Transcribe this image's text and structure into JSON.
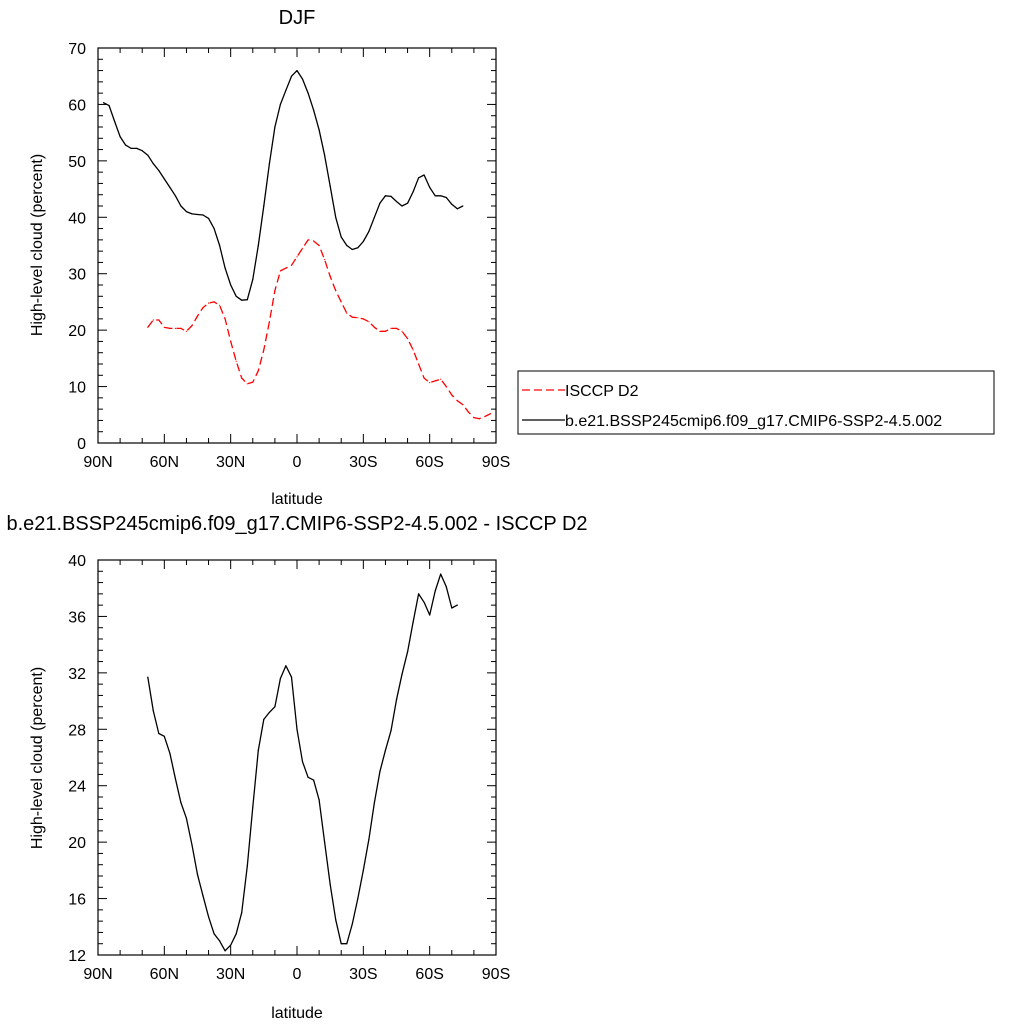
{
  "chart_data": [
    {
      "type": "line",
      "title": "DJF",
      "xlabel": "latitude",
      "ylabel": "High-level cloud (percent)",
      "xlim": [
        90,
        -90
      ],
      "ylim": [
        0,
        70
      ],
      "xticks": [
        {
          "value": 90,
          "label": "90N"
        },
        {
          "value": 60,
          "label": "60N"
        },
        {
          "value": 30,
          "label": "30N"
        },
        {
          "value": 0,
          "label": "0"
        },
        {
          "value": -30,
          "label": "30S"
        },
        {
          "value": -60,
          "label": "60S"
        },
        {
          "value": -90,
          "label": "90S"
        }
      ],
      "yticks": [
        0,
        10,
        20,
        30,
        40,
        50,
        60,
        70
      ],
      "legend_position": "right",
      "series": [
        {
          "name": "ISCCP D2",
          "style": "dashed",
          "color": "#ff0000",
          "points": [
            [
              67.5,
              20.5
            ],
            [
              65,
              21.8
            ],
            [
              62.5,
              21.8
            ],
            [
              60,
              20.5
            ],
            [
              57.5,
              20.3
            ],
            [
              55,
              20.3
            ],
            [
              52.5,
              20.3
            ],
            [
              50,
              19.8
            ],
            [
              47.5,
              20.8
            ],
            [
              45,
              22.5
            ],
            [
              42.5,
              24.0
            ],
            [
              40,
              24.8
            ],
            [
              37.5,
              25.0
            ],
            [
              35,
              24.4
            ],
            [
              32.5,
              22.0
            ],
            [
              30,
              18.0
            ],
            [
              27.5,
              14.5
            ],
            [
              25,
              11.5
            ],
            [
              22.5,
              10.5
            ],
            [
              20,
              10.8
            ],
            [
              17.5,
              12.8
            ],
            [
              15,
              16.5
            ],
            [
              12.5,
              21.5
            ],
            [
              10,
              27.0
            ],
            [
              7.5,
              30.5
            ],
            [
              5,
              31.0
            ],
            [
              2.5,
              31.5
            ],
            [
              0,
              33.0
            ],
            [
              -2.5,
              34.5
            ],
            [
              -5,
              36.0
            ],
            [
              -7.5,
              35.8
            ],
            [
              -10,
              35.0
            ],
            [
              -12.5,
              32.5
            ],
            [
              -15,
              29.5
            ],
            [
              -17.5,
              27.0
            ],
            [
              -20,
              25.0
            ],
            [
              -22.5,
              23.0
            ],
            [
              -25,
              22.3
            ],
            [
              -27.5,
              22.2
            ],
            [
              -30,
              22.0
            ],
            [
              -32.5,
              21.5
            ],
            [
              -35,
              20.5
            ],
            [
              -37.5,
              19.8
            ],
            [
              -40,
              19.8
            ],
            [
              -42.5,
              20.3
            ],
            [
              -45,
              20.3
            ],
            [
              -47.5,
              19.8
            ],
            [
              -50,
              18.5
            ],
            [
              -52.5,
              16.5
            ],
            [
              -55,
              14.0
            ],
            [
              -57.5,
              11.5
            ],
            [
              -60,
              10.7
            ],
            [
              -62.5,
              11.0
            ],
            [
              -65,
              11.3
            ],
            [
              -67.5,
              10.0
            ],
            [
              -70,
              8.5
            ],
            [
              -72.5,
              7.5
            ],
            [
              -75,
              6.8
            ],
            [
              -77.5,
              5.5
            ],
            [
              -80,
              4.5
            ],
            [
              -82.5,
              4.3
            ],
            [
              -85,
              4.7
            ],
            [
              -87.5,
              5.2
            ]
          ]
        },
        {
          "name": "b.e21.BSSP245cmip6.f09_g17.CMIP6-SSP2-4.5.002",
          "style": "solid",
          "color": "#000000",
          "points": [
            [
              87.5,
              60.3
            ],
            [
              85,
              59.8
            ],
            [
              82.5,
              57.0
            ],
            [
              80,
              54.3
            ],
            [
              77.5,
              52.8
            ],
            [
              75,
              52.2
            ],
            [
              72.5,
              52.2
            ],
            [
              70,
              51.8
            ],
            [
              67.5,
              51.0
            ],
            [
              65,
              49.5
            ],
            [
              62.5,
              48.3
            ],
            [
              60,
              46.8
            ],
            [
              57.5,
              45.3
            ],
            [
              55,
              43.8
            ],
            [
              52.5,
              42.0
            ],
            [
              50,
              41.0
            ],
            [
              47.5,
              40.6
            ],
            [
              45,
              40.5
            ],
            [
              42.5,
              40.4
            ],
            [
              40,
              39.8
            ],
            [
              37.5,
              38.0
            ],
            [
              35,
              35.0
            ],
            [
              32.5,
              31.0
            ],
            [
              30,
              28.0
            ],
            [
              27.5,
              26.0
            ],
            [
              25,
              25.3
            ],
            [
              22.5,
              25.4
            ],
            [
              20,
              29.0
            ],
            [
              17.5,
              35.0
            ],
            [
              15,
              42.0
            ],
            [
              12.5,
              49.5
            ],
            [
              10,
              56.0
            ],
            [
              7.5,
              60.0
            ],
            [
              5,
              62.5
            ],
            [
              2.5,
              65.0
            ],
            [
              0,
              66.0
            ],
            [
              -2.5,
              64.5
            ],
            [
              -5,
              62.0
            ],
            [
              -7.5,
              59.0
            ],
            [
              -10,
              55.5
            ],
            [
              -12.5,
              51.0
            ],
            [
              -15,
              45.5
            ],
            [
              -17.5,
              40.0
            ],
            [
              -20,
              36.5
            ],
            [
              -22.5,
              35.0
            ],
            [
              -25,
              34.3
            ],
            [
              -27.5,
              34.6
            ],
            [
              -30,
              35.7
            ],
            [
              -32.5,
              37.5
            ],
            [
              -35,
              40.0
            ],
            [
              -37.5,
              42.5
            ],
            [
              -40,
              43.8
            ],
            [
              -42.5,
              43.7
            ],
            [
              -45,
              42.8
            ],
            [
              -47.5,
              42.0
            ],
            [
              -50,
              42.5
            ],
            [
              -52.5,
              44.5
            ],
            [
              -55,
              47.0
            ],
            [
              -57.5,
              47.5
            ],
            [
              -60,
              45.3
            ],
            [
              -62.5,
              43.8
            ],
            [
              -65,
              43.8
            ],
            [
              -67.5,
              43.5
            ],
            [
              -70,
              42.3
            ],
            [
              -72.5,
              41.5
            ],
            [
              -75,
              42.0
            ]
          ]
        }
      ]
    },
    {
      "type": "line",
      "title": "b.e21.BSSP245cmip6.f09_g17.CMIP6-SSP2-4.5.002 - ISCCP D2",
      "xlabel": "latitude",
      "ylabel": "High-level cloud (percent)",
      "xlim": [
        90,
        -90
      ],
      "ylim": [
        12,
        40
      ],
      "xticks": [
        {
          "value": 90,
          "label": "90N"
        },
        {
          "value": 60,
          "label": "60N"
        },
        {
          "value": 30,
          "label": "30N"
        },
        {
          "value": 0,
          "label": "0"
        },
        {
          "value": -30,
          "label": "30S"
        },
        {
          "value": -60,
          "label": "60S"
        },
        {
          "value": -90,
          "label": "90S"
        }
      ],
      "yticks": [
        12,
        16,
        20,
        24,
        28,
        32,
        36,
        40
      ],
      "series": [
        {
          "style": "solid",
          "color": "#000000",
          "points": [
            [
              67.5,
              31.7
            ],
            [
              65,
              29.3
            ],
            [
              62.5,
              27.7
            ],
            [
              60,
              27.5
            ],
            [
              57.5,
              26.3
            ],
            [
              55,
              24.5
            ],
            [
              52.5,
              22.8
            ],
            [
              50,
              21.7
            ],
            [
              47.5,
              19.8
            ],
            [
              45,
              17.7
            ],
            [
              42.5,
              16.2
            ],
            [
              40,
              14.7
            ],
            [
              37.5,
              13.5
            ],
            [
              35,
              13.0
            ],
            [
              32.5,
              12.3
            ],
            [
              30,
              12.7
            ],
            [
              27.5,
              13.5
            ],
            [
              25,
              15.0
            ],
            [
              22.5,
              18.3
            ],
            [
              20,
              22.5
            ],
            [
              17.5,
              26.5
            ],
            [
              15,
              28.7
            ],
            [
              12.5,
              29.2
            ],
            [
              10,
              29.6
            ],
            [
              7.5,
              31.6
            ],
            [
              5,
              32.5
            ],
            [
              2.5,
              31.7
            ],
            [
              0,
              28.0
            ],
            [
              -2.5,
              25.7
            ],
            [
              -5,
              24.6
            ],
            [
              -7.5,
              24.4
            ],
            [
              -10,
              23.0
            ],
            [
              -12.5,
              20.0
            ],
            [
              -15,
              17.0
            ],
            [
              -17.5,
              14.5
            ],
            [
              -20,
              12.8
            ],
            [
              -22.5,
              12.8
            ],
            [
              -25,
              14.2
            ],
            [
              -27.5,
              16.0
            ],
            [
              -30,
              18.0
            ],
            [
              -32.5,
              20.2
            ],
            [
              -35,
              22.8
            ],
            [
              -37.5,
              25.0
            ],
            [
              -40,
              26.5
            ],
            [
              -42.5,
              27.9
            ],
            [
              -45,
              30.1
            ],
            [
              -47.5,
              31.9
            ],
            [
              -50,
              33.5
            ],
            [
              -52.5,
              35.6
            ],
            [
              -55,
              37.6
            ],
            [
              -57.5,
              37.0
            ],
            [
              -60,
              36.1
            ],
            [
              -62.5,
              37.8
            ],
            [
              -65,
              39.0
            ],
            [
              -67.5,
              38.1
            ],
            [
              -70,
              36.6
            ],
            [
              -72.5,
              36.8
            ]
          ]
        }
      ]
    }
  ]
}
